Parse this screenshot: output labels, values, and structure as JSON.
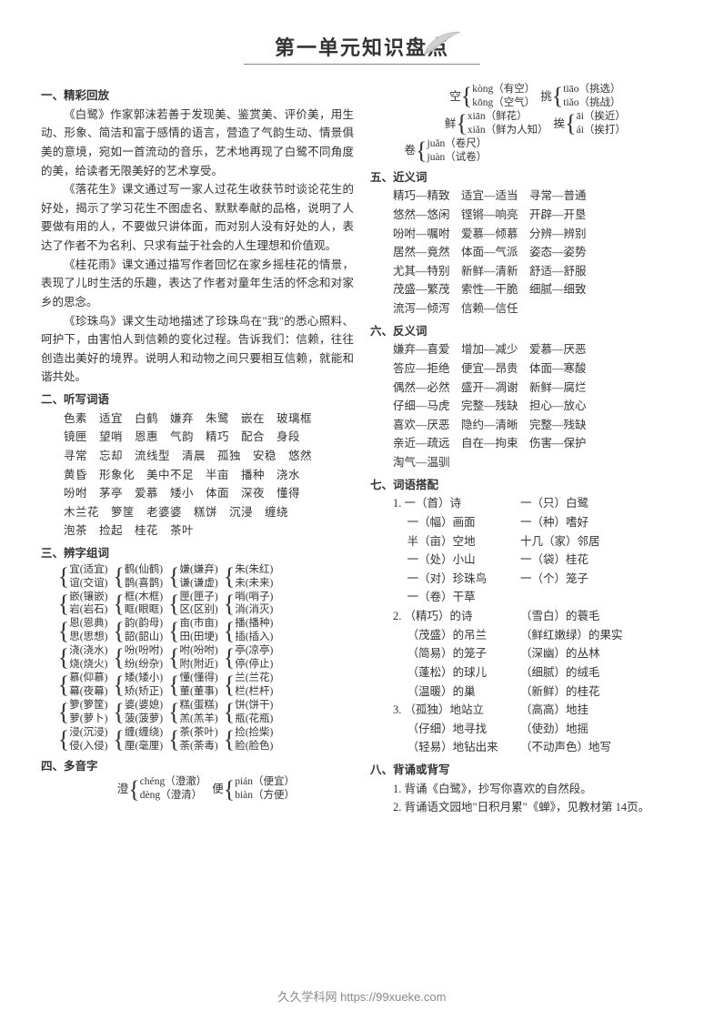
{
  "title": "第一单元知识盘点",
  "section1_head": "一、精彩回放",
  "s1p1": "《白鹭》作家郭沫若善于发现美、鉴赏美、评价美，用生动、形象、简洁和富于感情的语言，营造了气韵生动、情景俱美的意境，宛如一首流动的音乐，艺术地再现了白鹭不同角度的美，给读者无限美好的艺术享受。",
  "s1p2": "《落花生》课文通过写一家人过花生收获节时谈论花生的好处，揭示了学习花生不图虚名、默默奉献的品格，说明了人要做有用的人，不要做只讲体面，而对别人没有好处的人，表达了作者不为名利、只求有益于社会的人生理想和价值观。",
  "s1p3": "《桂花雨》课文通过描写作者回忆在家乡摇桂花的情景，表现了儿时生活的乐趣，表达了作者对童年生活的怀念和对家乡的思念。",
  "s1p4": "《珍珠鸟》课文生动地描述了珍珠鸟在\"我\"的悉心照料、呵护下，由害怕人到信赖的变化过程。告诉我们：信赖，往往创造出美好的境界。说明人和动物之间只要相互信赖，就能和谐共处。",
  "section2_head": "二、听写词语",
  "listen_lines": [
    "色素　适宜　白鹤　嫌弃　朱鹭　嵌在　玻璃框",
    "镜匣　望哨　恩惠　气韵　精巧　配合　身段",
    "寻常　忘却　流线型　清晨　孤独　安稳　悠然",
    "黄昏　形象化　美中不足　半亩　播种　浇水",
    "吩咐　茅亭　爱慕　矮小　体面　深夜　懂得",
    "木兰花　箩筐　老婆婆　糕饼　沉浸　缠绕",
    "泡茶　捡起　桂花　茶叶"
  ],
  "section3_head": "三、辨字组词",
  "brace_rows": [
    [
      [
        "宜(适宜)",
        "谊(交谊)"
      ],
      [
        "鹤(仙鹤)",
        "鹊(喜鹊)"
      ],
      [
        "嫌(嫌弃)",
        "谦(谦虚)"
      ],
      [
        "朱(朱红)",
        "未(未来)"
      ]
    ],
    [
      [
        "嵌(镶嵌)",
        "岩(岩石)"
      ],
      [
        "框(木框)",
        "眶(眼眶)"
      ],
      [
        "匣(匣子)",
        "区(区别)"
      ],
      [
        "哨(哨子)",
        "消(消灭)"
      ]
    ],
    [
      [
        "恩(恩典)",
        "思(思想)"
      ],
      [
        "韵(韵母)",
        "韶(韶山)"
      ],
      [
        "亩(市亩)",
        "田(田埂)"
      ],
      [
        "播(播种)",
        "插(插入)"
      ]
    ],
    [
      [
        "浇(浇水)",
        "烧(烧火)"
      ],
      [
        "吩(吩咐)",
        "纷(纷杂)"
      ],
      [
        "咐(吩咐)",
        "附(附近)"
      ],
      [
        "亭(凉亭)",
        "停(停止)"
      ]
    ],
    [
      [
        "慕(仰慕)",
        "幕(夜幕)"
      ],
      [
        "矮(矮小)",
        "矫(矫正)"
      ],
      [
        "懂(懂得)",
        "董(董事)"
      ],
      [
        "兰(兰花)",
        "栏(栏杆)"
      ]
    ],
    [
      [
        "箩(箩筐)",
        "萝(萝卜)"
      ],
      [
        "婆(婆媳)",
        "菠(菠萝)"
      ],
      [
        "糕(蛋糕)",
        "羔(羔羊)"
      ],
      [
        "饼(饼干)",
        "瓶(花瓶)"
      ]
    ],
    [
      [
        "浸(沉浸)",
        "侵(入侵)"
      ],
      [
        "缠(缠绕)",
        "厘(毫厘)"
      ],
      [
        "茶(茶叶)",
        "荼(荼毒)"
      ],
      [
        "捡(捡柴)",
        "脸(脸色)"
      ]
    ]
  ],
  "section4_head": "四、多音字",
  "poly1": [
    {
      "head": "澄",
      "items": [
        "chéng（澄澈）",
        "dèng（澄清）"
      ]
    },
    {
      "head": "便",
      "items": [
        "pián（便宜）",
        "biàn（方便）"
      ]
    }
  ],
  "poly2": [
    {
      "head": "空",
      "items": [
        "kòng（有空）",
        "kōng（空气）"
      ]
    },
    {
      "head": "挑",
      "items": [
        "tiāo（挑选）",
        "tiǎo（挑战）"
      ]
    }
  ],
  "poly3": [
    {
      "head": "鲜",
      "items": [
        "xiān（鲜花）",
        "xiǎn（鲜为人知）"
      ]
    },
    {
      "head": "挨",
      "items": [
        "āi（挨近）",
        "ái（挨打）"
      ]
    }
  ],
  "poly4": [
    {
      "head": "卷",
      "items": [
        "juǎn（卷尺）",
        "juàn（试卷）"
      ]
    }
  ],
  "section5_head": "五、近义词",
  "syn_lines": [
    "精巧—精致　适宜—适当　寻常—普通",
    "悠然—悠闲　铿锵—响亮　开辟—开垦",
    "吩咐—嘱咐　爱慕—倾慕　分辨—辨别",
    "居然—竟然　体面—气派　姿态—姿势",
    "尤其—特别　新鲜—清新　舒适—舒服",
    "茂盛—繁茂　索性—干脆　细腻—细致",
    "流泻—倾泻　信赖—信任"
  ],
  "section6_head": "六、反义词",
  "ant_lines": [
    "嫌弃—喜爱　增加—减少　爱慕—厌恶",
    "答应—拒绝　便宜—昂贵　体面—寒酸",
    "偶然—必然　盛开—凋谢　新鲜—腐烂",
    "仔细—马虎　完整—残缺　担心—放心",
    "喜欢—厌恶　隐约—清晰　完整—残缺",
    "亲近—疏远　自在—拘束　伤害—保护",
    "淘气—温驯"
  ],
  "section7_head": "七、词语搭配",
  "coll": [
    {
      "n": "1.",
      "rows": [
        [
          "一（首）诗",
          "一（只）白鹭"
        ],
        [
          "一（幅）画面",
          "一（种）嗜好"
        ],
        [
          "半（亩）空地",
          "十几（家）邻居"
        ],
        [
          "一（处）小山",
          "一（袋）桂花"
        ],
        [
          "一（对）珍珠鸟",
          "一（个）笼子"
        ],
        [
          "一（卷）干草",
          ""
        ]
      ]
    },
    {
      "n": "2.",
      "rows": [
        [
          "（精巧）的诗",
          "（雪白）的蓑毛"
        ],
        [
          "（茂盛）的吊兰",
          "（鲜红嫩绿）的果实"
        ],
        [
          "（简易）的笼子",
          "（深幽）的丛林"
        ],
        [
          "（蓬松）的球儿",
          "（细腻）的绒毛"
        ],
        [
          "（温暖）的巢",
          "（新鲜）的桂花"
        ]
      ]
    },
    {
      "n": "3.",
      "rows": [
        [
          "（孤独）地站立",
          "（高高）地挂"
        ],
        [
          "（仔细）地寻找",
          "（使劲）地摇"
        ],
        [
          "（轻易）地钻出来",
          "（不动声色）地写"
        ]
      ]
    }
  ],
  "section8_head": "八、背诵或背写",
  "s8p1": "1. 背诵《白鹭》，抄写你喜欢的自然段。",
  "s8p2": "2. 背诵语文园地\"日积月累\"《蝉》，见教材第 14页。",
  "footer": "久久学科网 https://99xueke.com"
}
